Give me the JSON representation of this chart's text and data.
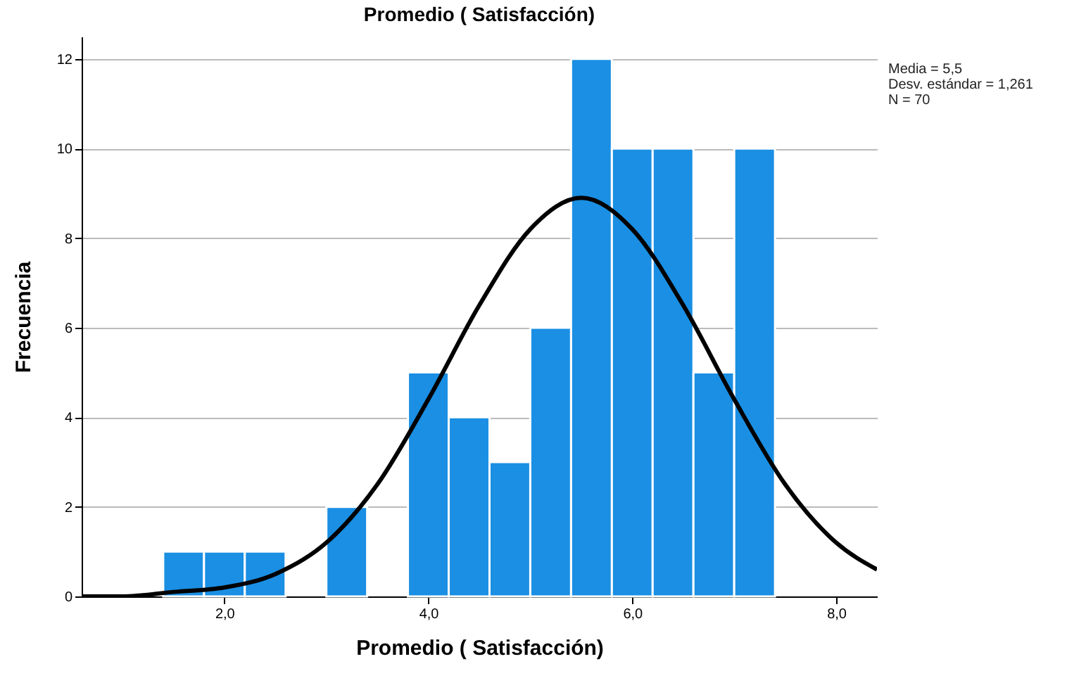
{
  "chart_data": {
    "type": "histogram",
    "title": "Promedio ( Satisfacción)",
    "xlabel": "Promedio ( Satisfacción)",
    "ylabel": "Frecuencia",
    "bins": [
      1.4,
      1.8,
      2.2,
      2.6,
      3.0,
      3.4,
      3.8,
      4.2,
      4.6,
      5.0,
      5.4,
      5.8,
      6.2,
      6.6,
      7.0,
      7.4
    ],
    "series": [
      {
        "color": "#1a8fe3",
        "values": [
          1,
          1,
          1,
          0,
          2,
          0,
          5,
          4,
          3,
          6,
          12,
          10,
          10,
          5,
          10
        ]
      },
      {
        "type": "line",
        "color": "#000000",
        "x": [
          0.6,
          1.0,
          1.5,
          2.0,
          2.5,
          3.0,
          3.5,
          4.0,
          4.5,
          5.0,
          5.5,
          6.0,
          6.5,
          7.0,
          7.5,
          8.0,
          8.4
        ],
        "values": [
          0.0,
          0.0,
          0.1,
          0.2,
          0.5,
          1.2,
          2.5,
          4.4,
          6.5,
          8.2,
          8.9,
          8.2,
          6.5,
          4.4,
          2.5,
          1.2,
          0.6
        ]
      }
    ],
    "xlim": [
      0.6,
      8.4
    ],
    "xticks": [
      {
        "value": 2,
        "label": "2,0"
      },
      {
        "value": 4,
        "label": "4,0"
      },
      {
        "value": 6,
        "label": "6,0"
      },
      {
        "value": 8,
        "label": "8,0"
      }
    ],
    "ylim": [
      0,
      12.5
    ],
    "yticks": [
      0,
      2,
      4,
      6,
      8,
      10,
      12
    ],
    "grid": "y",
    "annotations": [
      "Media = 5,5",
      "Desv. estándar = 1,261",
      "N = 70"
    ]
  }
}
